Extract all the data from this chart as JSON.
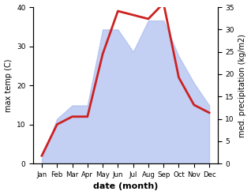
{
  "months": [
    "Jan",
    "Feb",
    "Mar",
    "Apr",
    "May",
    "Jun",
    "Jul",
    "Aug",
    "Sep",
    "Oct",
    "Nov",
    "Dec"
  ],
  "temp": [
    2,
    10,
    12,
    12,
    28,
    39,
    38,
    37,
    41,
    22,
    15,
    13
  ],
  "precip": [
    1,
    10,
    13,
    13,
    30,
    30,
    25,
    32,
    32,
    24,
    18,
    13
  ],
  "temp_ylim": [
    0,
    40
  ],
  "precip_ylim": [
    0,
    35
  ],
  "temp_color": "#cc2222",
  "fill_color": "#aabbee",
  "fill_alpha": 0.7,
  "temp_linewidth": 2.0,
  "xlabel": "date (month)",
  "ylabel_left": "max temp (C)",
  "ylabel_right": "med. precipitation (kg/m2)",
  "bg_color": "#ffffff",
  "yticks_left": [
    0,
    10,
    20,
    30,
    40
  ],
  "yticks_right": [
    0,
    5,
    10,
    15,
    20,
    25,
    30,
    35
  ]
}
